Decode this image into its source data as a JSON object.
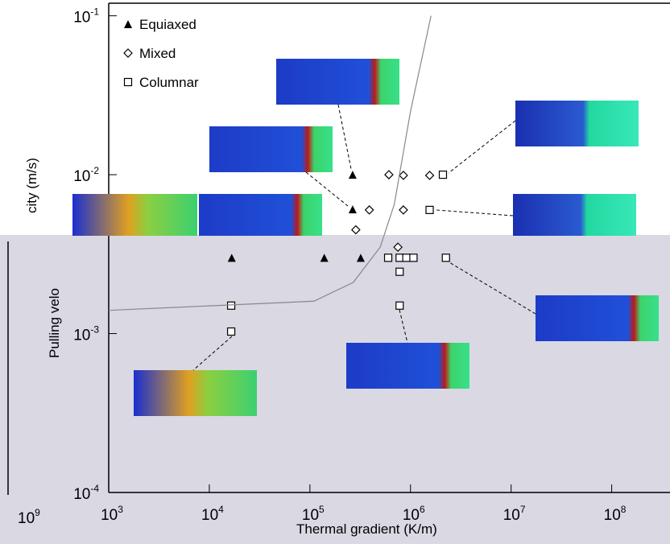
{
  "chart_data": {
    "type": "scatter",
    "xlabel": "Thermal gradient (K/m)",
    "ylabel_top": "city (m/s)",
    "ylabel_bottom": "Pulling velo",
    "stray_label": {
      "label": "10",
      "exponent": "9"
    },
    "xlog": true,
    "ylog": true,
    "xlim": [
      1000,
      380000000
    ],
    "ylim": [
      0.0001,
      0.12
    ],
    "xticks": [
      {
        "value": 1000,
        "label": "10",
        "exponent": "3"
      },
      {
        "value": 10000,
        "label": "10",
        "exponent": "4"
      },
      {
        "value": 100000,
        "label": "10",
        "exponent": "5"
      },
      {
        "value": 1000000,
        "label": "10",
        "exponent": "6"
      },
      {
        "value": 10000000,
        "label": "10",
        "exponent": "7"
      },
      {
        "value": 100000000,
        "label": "10",
        "exponent": "8"
      }
    ],
    "yticks": [
      {
        "value": 0.0001,
        "label": "10",
        "exponent": "-4"
      },
      {
        "value": 0.001,
        "label": "10",
        "exponent": "-3"
      },
      {
        "value": 0.01,
        "label": "10",
        "exponent": "-2"
      },
      {
        "value": 0.1,
        "label": "10",
        "exponent": "-1"
      }
    ],
    "legend": "top-left",
    "series": [
      {
        "name": "Equiaxed",
        "marker": "triangle",
        "color": "#000000",
        "x": [
          266000,
          266000,
          16700,
          139000,
          320000
        ],
        "values": [
          0.01,
          0.00605,
          0.003,
          0.003,
          0.003
        ]
      },
      {
        "name": "Mixed",
        "marker": "diamond",
        "color": "#000000",
        "x": [
          610000,
          850000,
          1550000,
          390000,
          850000,
          286000,
          750000
        ],
        "values": [
          0.01,
          0.0099,
          0.0099,
          0.006,
          0.006,
          0.0045,
          0.0035
        ]
      },
      {
        "name": "Columnar",
        "marker": "square",
        "color": "#000000",
        "x": [
          2100000,
          1550000,
          600000,
          780000,
          910000,
          1070000,
          2250000,
          780000,
          16500,
          780000,
          16500
        ],
        "values": [
          0.01,
          0.006,
          0.003,
          0.003,
          0.003,
          0.003,
          0.003,
          0.00245,
          0.0015,
          0.0015,
          0.00103
        ]
      },
      {
        "marker": "line",
        "color": "#888888",
        "x": [
          1000,
          110000,
          270000,
          500000,
          690000,
          1000000,
          1600000
        ],
        "values": [
          0.0014,
          0.0016,
          0.0021,
          0.0035,
          0.0065,
          0.025,
          0.1
        ]
      }
    ]
  }
}
